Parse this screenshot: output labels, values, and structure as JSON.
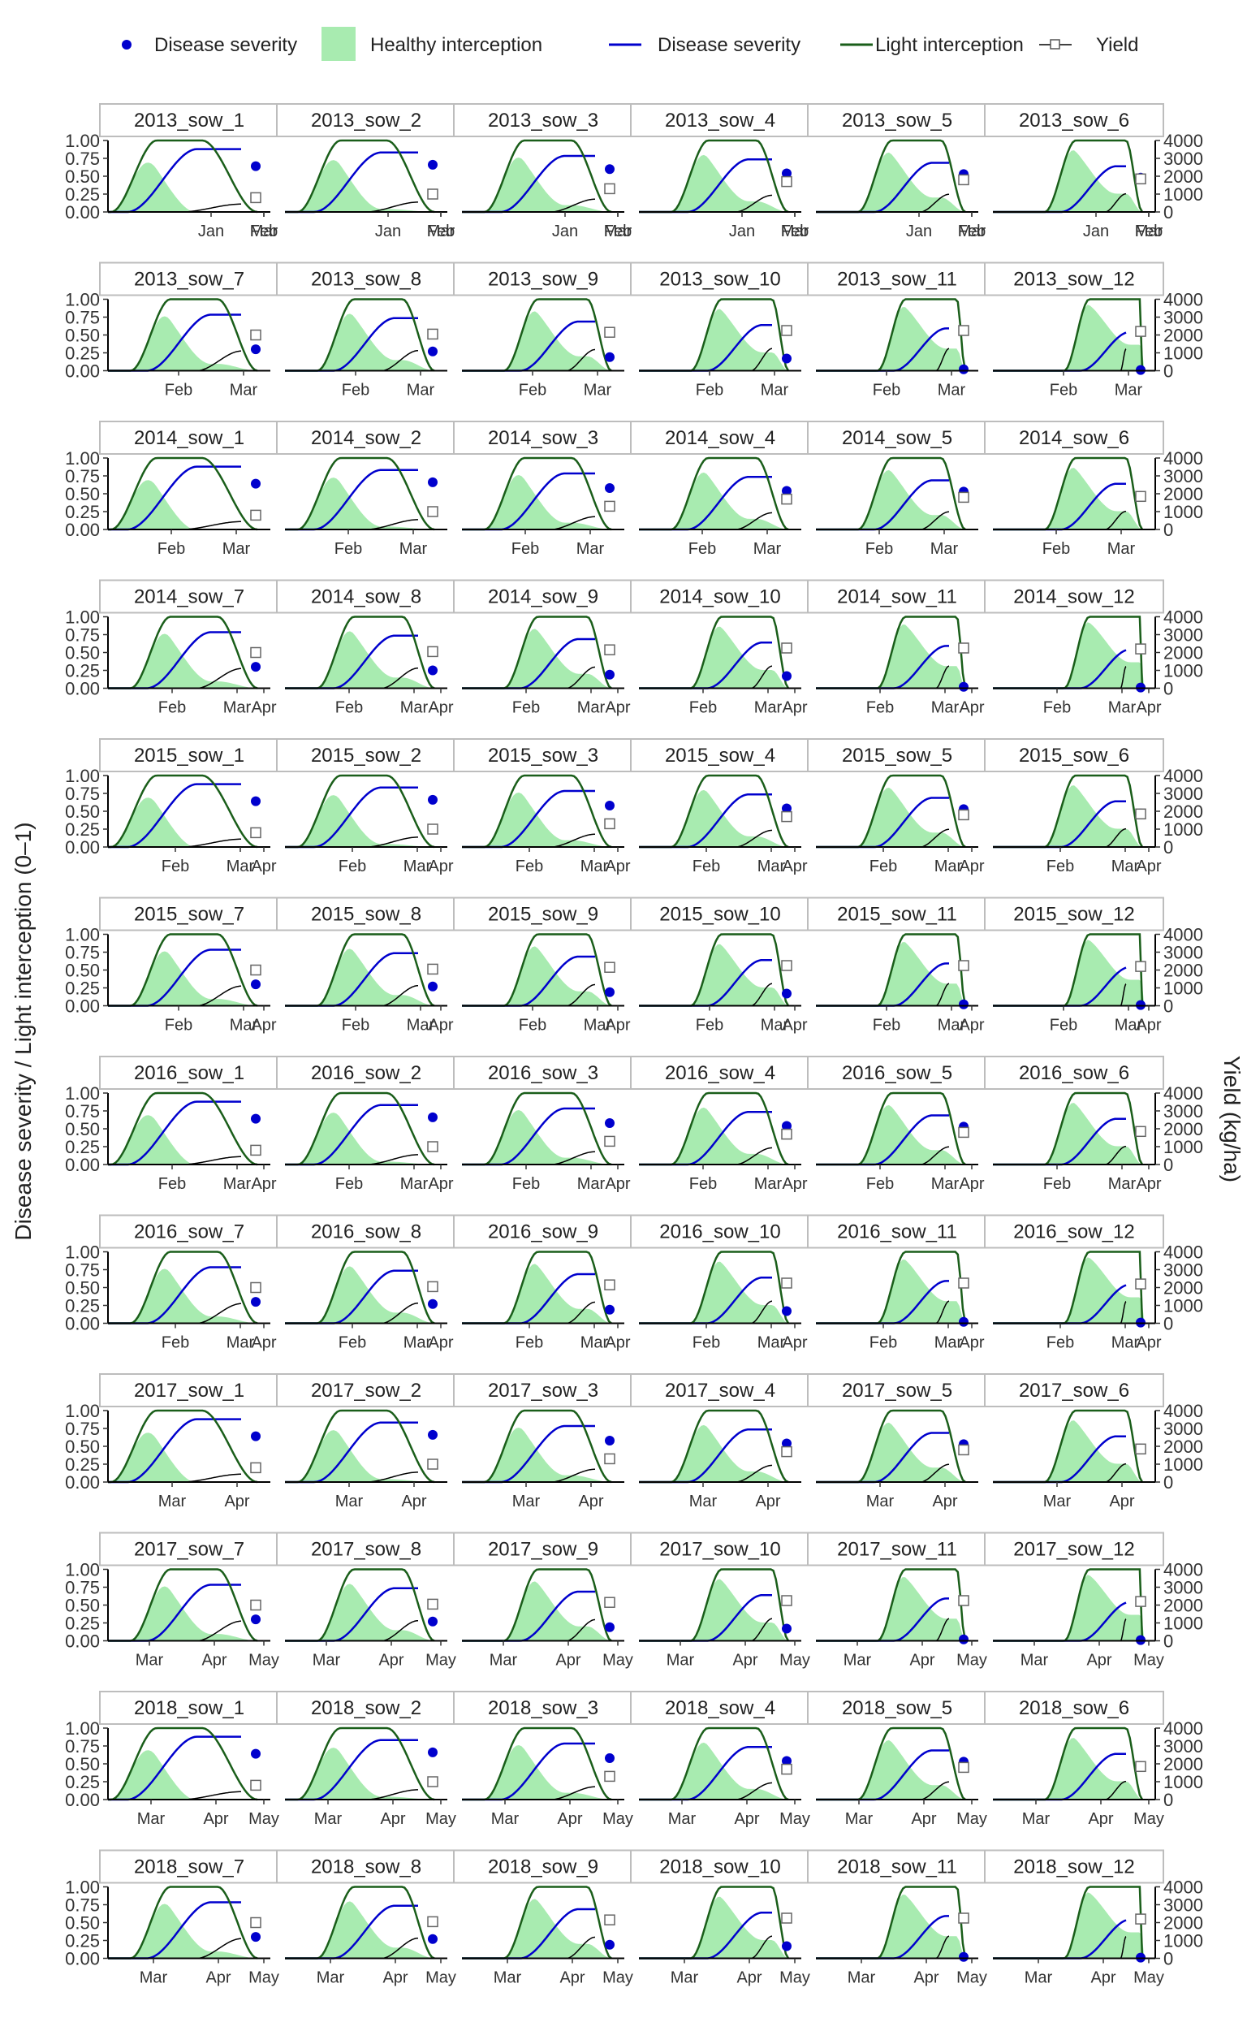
{
  "chart_data": {
    "type": "line",
    "layout": "facet-grid",
    "title": "",
    "ylabel_left": "Disease severity / Light interception (0–1)",
    "ylabel_right": "Yield (kg/ha)",
    "y_left_range": [
      0,
      1
    ],
    "y_left_ticks": [
      "0.00",
      "0.25",
      "0.50",
      "0.75",
      "1.00"
    ],
    "y_right_range": [
      0,
      4000
    ],
    "y_right_ticks": [
      "0",
      "1000",
      "2000",
      "3000",
      "4000"
    ],
    "grid": false,
    "legend_position": "top",
    "legend": [
      {
        "key": "disease_point",
        "label": "Disease severity",
        "kind": "point"
      },
      {
        "key": "healthy_area",
        "label": "Healthy interception",
        "kind": "area"
      },
      {
        "key": "disease_line",
        "label": "Disease severity",
        "kind": "line"
      },
      {
        "key": "light_line",
        "label": "Light interception",
        "kind": "line"
      },
      {
        "key": "yield_line",
        "label": "Yield",
        "kind": "line-square"
      }
    ],
    "colors": {
      "disease": "#0000cd",
      "light": "#1a5e1a",
      "healthy": "#a8ebb0",
      "yield": "#000000",
      "strip_bg": "#ffffff",
      "strip_border": "#bdbdbd"
    },
    "x_axis_labels": [
      [
        "Jan",
        "Feb",
        "Mar"
      ],
      [
        "Feb",
        "Mar"
      ],
      [
        "Feb",
        "Mar"
      ],
      [
        "Feb",
        "Mar",
        "Apr"
      ],
      [
        "Feb",
        "Mar",
        "Apr"
      ],
      [
        "Feb",
        "Mar",
        "Apr"
      ],
      [
        "Feb",
        "Mar",
        "Apr"
      ],
      [
        "Feb",
        "Mar",
        "Apr"
      ],
      [
        "Mar",
        "Apr"
      ],
      [
        "Mar",
        "Apr",
        "May"
      ],
      [
        "Mar",
        "Apr",
        "May"
      ],
      [
        "Mar",
        "Apr",
        "May"
      ]
    ],
    "panels": [
      {
        "label": "2013_sow_1",
        "severity": 0.64,
        "yield": 800
      },
      {
        "label": "2013_sow_2",
        "severity": 0.66,
        "yield": 1000
      },
      {
        "label": "2013_sow_3",
        "severity": 0.6,
        "yield": 1300
      },
      {
        "label": "2013_sow_4",
        "severity": 0.54,
        "yield": 1700
      },
      {
        "label": "2013_sow_5",
        "severity": 0.53,
        "yield": 1800
      },
      {
        "label": "2013_sow_6",
        "severity": 0.48,
        "yield": 1850
      },
      {
        "label": "2013_sow_7",
        "severity": 0.3,
        "yield": 2000
      },
      {
        "label": "2013_sow_8",
        "severity": 0.27,
        "yield": 2050
      },
      {
        "label": "2013_sow_9",
        "severity": 0.19,
        "yield": 2150
      },
      {
        "label": "2013_sow_10",
        "severity": 0.17,
        "yield": 2250
      },
      {
        "label": "2013_sow_11",
        "severity": 0.02,
        "yield": 2250
      },
      {
        "label": "2013_sow_12",
        "severity": 0.01,
        "yield": 2200
      },
      {
        "label": "2014_sow_1",
        "severity": 0.64,
        "yield": 800
      },
      {
        "label": "2014_sow_2",
        "severity": 0.66,
        "yield": 1000
      },
      {
        "label": "2014_sow_3",
        "severity": 0.58,
        "yield": 1300
      },
      {
        "label": "2014_sow_4",
        "severity": 0.54,
        "yield": 1700
      },
      {
        "label": "2014_sow_5",
        "severity": 0.53,
        "yield": 1800
      },
      {
        "label": "2014_sow_6",
        "severity": 0.47,
        "yield": 1850
      },
      {
        "label": "2014_sow_7",
        "severity": 0.3,
        "yield": 2000
      },
      {
        "label": "2014_sow_8",
        "severity": 0.25,
        "yield": 2050
      },
      {
        "label": "2014_sow_9",
        "severity": 0.19,
        "yield": 2150
      },
      {
        "label": "2014_sow_10",
        "severity": 0.17,
        "yield": 2250
      },
      {
        "label": "2014_sow_11",
        "severity": 0.02,
        "yield": 2250
      },
      {
        "label": "2014_sow_12",
        "severity": 0.01,
        "yield": 2200
      },
      {
        "label": "2015_sow_1",
        "severity": 0.64,
        "yield": 800
      },
      {
        "label": "2015_sow_2",
        "severity": 0.66,
        "yield": 1000
      },
      {
        "label": "2015_sow_3",
        "severity": 0.58,
        "yield": 1300
      },
      {
        "label": "2015_sow_4",
        "severity": 0.54,
        "yield": 1700
      },
      {
        "label": "2015_sow_5",
        "severity": 0.53,
        "yield": 1800
      },
      {
        "label": "2015_sow_6",
        "severity": 0.47,
        "yield": 1850
      },
      {
        "label": "2015_sow_7",
        "severity": 0.3,
        "yield": 2000
      },
      {
        "label": "2015_sow_8",
        "severity": 0.27,
        "yield": 2050
      },
      {
        "label": "2015_sow_9",
        "severity": 0.19,
        "yield": 2150
      },
      {
        "label": "2015_sow_10",
        "severity": 0.17,
        "yield": 2250
      },
      {
        "label": "2015_sow_11",
        "severity": 0.02,
        "yield": 2250
      },
      {
        "label": "2015_sow_12",
        "severity": 0.01,
        "yield": 2200
      },
      {
        "label": "2016_sow_1",
        "severity": 0.64,
        "yield": 800
      },
      {
        "label": "2016_sow_2",
        "severity": 0.66,
        "yield": 1000
      },
      {
        "label": "2016_sow_3",
        "severity": 0.58,
        "yield": 1300
      },
      {
        "label": "2016_sow_4",
        "severity": 0.54,
        "yield": 1700
      },
      {
        "label": "2016_sow_5",
        "severity": 0.53,
        "yield": 1800
      },
      {
        "label": "2016_sow_6",
        "severity": 0.47,
        "yield": 1850
      },
      {
        "label": "2016_sow_7",
        "severity": 0.3,
        "yield": 2000
      },
      {
        "label": "2016_sow_8",
        "severity": 0.27,
        "yield": 2050
      },
      {
        "label": "2016_sow_9",
        "severity": 0.19,
        "yield": 2150
      },
      {
        "label": "2016_sow_10",
        "severity": 0.17,
        "yield": 2250
      },
      {
        "label": "2016_sow_11",
        "severity": 0.02,
        "yield": 2250
      },
      {
        "label": "2016_sow_12",
        "severity": 0.01,
        "yield": 2200
      },
      {
        "label": "2017_sow_1",
        "severity": 0.64,
        "yield": 800
      },
      {
        "label": "2017_sow_2",
        "severity": 0.66,
        "yield": 1000
      },
      {
        "label": "2017_sow_3",
        "severity": 0.58,
        "yield": 1300
      },
      {
        "label": "2017_sow_4",
        "severity": 0.54,
        "yield": 1700
      },
      {
        "label": "2017_sow_5",
        "severity": 0.53,
        "yield": 1800
      },
      {
        "label": "2017_sow_6",
        "severity": 0.47,
        "yield": 1850
      },
      {
        "label": "2017_sow_7",
        "severity": 0.3,
        "yield": 2000
      },
      {
        "label": "2017_sow_8",
        "severity": 0.27,
        "yield": 2050
      },
      {
        "label": "2017_sow_9",
        "severity": 0.19,
        "yield": 2150
      },
      {
        "label": "2017_sow_10",
        "severity": 0.17,
        "yield": 2250
      },
      {
        "label": "2017_sow_11",
        "severity": 0.02,
        "yield": 2250
      },
      {
        "label": "2017_sow_12",
        "severity": 0.01,
        "yield": 2200
      },
      {
        "label": "2018_sow_1",
        "severity": 0.64,
        "yield": 800
      },
      {
        "label": "2018_sow_2",
        "severity": 0.66,
        "yield": 1000
      },
      {
        "label": "2018_sow_3",
        "severity": 0.58,
        "yield": 1300
      },
      {
        "label": "2018_sow_4",
        "severity": 0.54,
        "yield": 1700
      },
      {
        "label": "2018_sow_5",
        "severity": 0.53,
        "yield": 1800
      },
      {
        "label": "2018_sow_6",
        "severity": 0.47,
        "yield": 1850
      },
      {
        "label": "2018_sow_7",
        "severity": 0.3,
        "yield": 2000
      },
      {
        "label": "2018_sow_8",
        "severity": 0.27,
        "yield": 2050
      },
      {
        "label": "2018_sow_9",
        "severity": 0.19,
        "yield": 2150
      },
      {
        "label": "2018_sow_10",
        "severity": 0.17,
        "yield": 2250
      },
      {
        "label": "2018_sow_11",
        "severity": 0.02,
        "yield": 2250
      },
      {
        "label": "2018_sow_12",
        "severity": 0.01,
        "yield": 2200
      }
    ]
  }
}
